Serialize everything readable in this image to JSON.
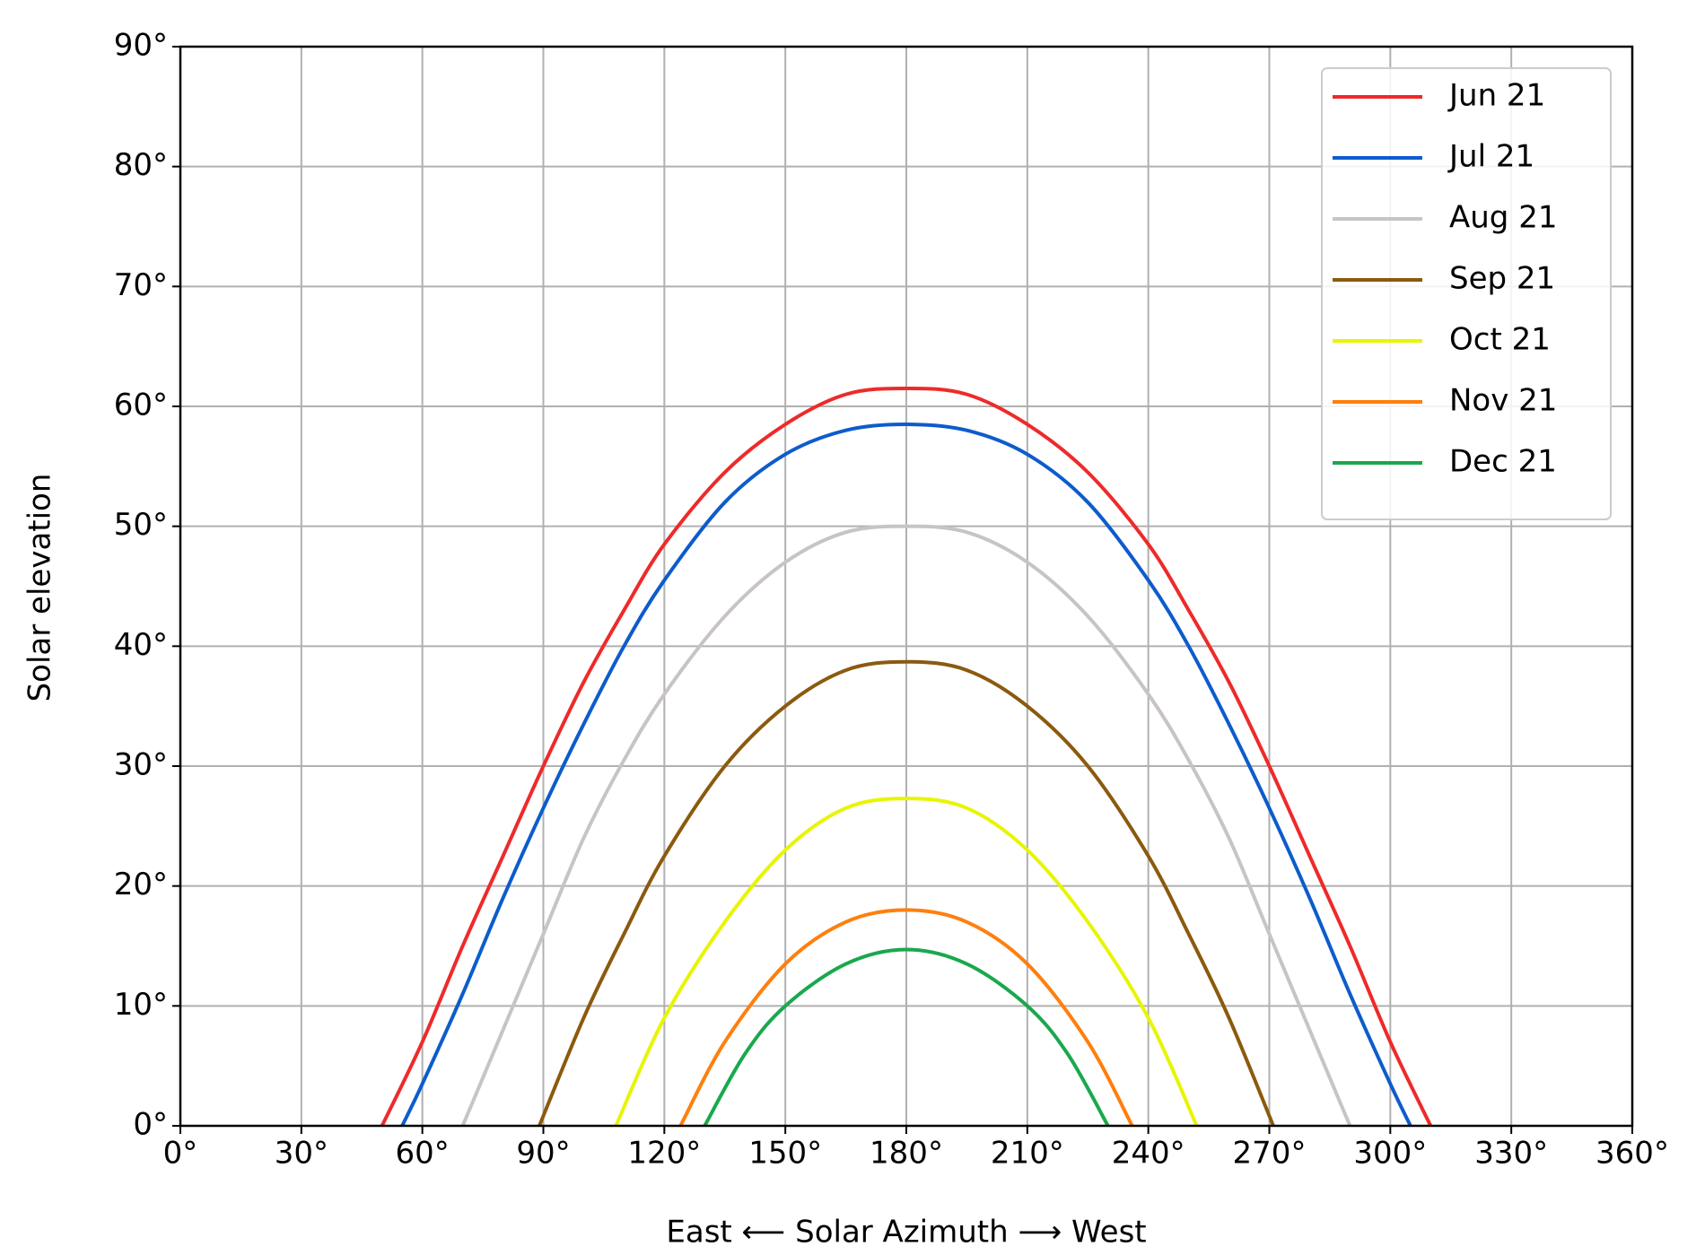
{
  "chart_data": {
    "type": "line",
    "xlabel": "East ⟵ Solar Azimuth ⟶ West",
    "ylabel": "Solar elevation",
    "xlim": [
      0,
      360
    ],
    "ylim": [
      0,
      90
    ],
    "xticks": [
      {
        "value": 0,
        "label": "0°"
      },
      {
        "value": 30,
        "label": "30°"
      },
      {
        "value": 60,
        "label": "60°"
      },
      {
        "value": 90,
        "label": "90°"
      },
      {
        "value": 120,
        "label": "120°"
      },
      {
        "value": 150,
        "label": "150°"
      },
      {
        "value": 180,
        "label": "180°"
      },
      {
        "value": 210,
        "label": "210°"
      },
      {
        "value": 240,
        "label": "240°"
      },
      {
        "value": 270,
        "label": "270°"
      },
      {
        "value": 300,
        "label": "300°"
      },
      {
        "value": 330,
        "label": "330°"
      },
      {
        "value": 360,
        "label": "360°"
      }
    ],
    "yticks": [
      {
        "value": 0,
        "label": "0°"
      },
      {
        "value": 10,
        "label": "10°"
      },
      {
        "value": 20,
        "label": "20°"
      },
      {
        "value": 30,
        "label": "30°"
      },
      {
        "value": 40,
        "label": "40°"
      },
      {
        "value": 50,
        "label": "50°"
      },
      {
        "value": 60,
        "label": "60°"
      },
      {
        "value": 70,
        "label": "70°"
      },
      {
        "value": 80,
        "label": "80°"
      },
      {
        "value": 90,
        "label": "90°"
      }
    ],
    "grid": true,
    "legend": "upper right",
    "series": [
      {
        "name": "Jun 21",
        "color": "#ee2a2a",
        "x": [
          50,
          60,
          70,
          80,
          90,
          100,
          110,
          120,
          135,
          150,
          165,
          180,
          195,
          210,
          225,
          240,
          250,
          260,
          270,
          280,
          290,
          300,
          310
        ],
        "values": [
          0,
          7,
          15,
          22.5,
          30,
          37,
          43,
          48.5,
          54.5,
          58.5,
          61,
          61.5,
          61,
          58.5,
          54.5,
          48.5,
          43,
          37,
          30,
          22.5,
          15,
          7,
          0
        ]
      },
      {
        "name": "Jul 21",
        "color": "#0d5ccc",
        "x": [
          55,
          60,
          70,
          80,
          90,
          100,
          110,
          120,
          135,
          150,
          165,
          180,
          195,
          210,
          225,
          240,
          250,
          260,
          270,
          280,
          290,
          300,
          305
        ],
        "values": [
          0,
          3.5,
          11,
          19,
          26.5,
          33.5,
          40,
          45.5,
          52,
          56,
          58,
          58.5,
          58,
          56,
          52,
          45.5,
          40,
          33.5,
          26.5,
          19,
          11,
          3.5,
          0
        ]
      },
      {
        "name": "Aug 21",
        "color": "#c8c3c8",
        "x": [
          70,
          80,
          90,
          100,
          110,
          120,
          135,
          150,
          165,
          180,
          195,
          210,
          225,
          240,
          250,
          260,
          270,
          280,
          290
        ],
        "values": [
          0,
          8,
          16,
          24,
          30.5,
          36,
          42.5,
          47,
          49.5,
          50,
          49.5,
          47,
          42.5,
          36,
          30.5,
          24,
          16,
          8,
          0
        ]
      },
      {
        "name": "Sep 21",
        "color": "#8b5a0e",
        "x": [
          89,
          100,
          110,
          120,
          135,
          150,
          165,
          180,
          195,
          210,
          225,
          240,
          250,
          260,
          271
        ],
        "values": [
          0,
          9,
          16,
          22.5,
          30,
          35,
          38,
          38.7,
          38,
          35,
          30,
          22.5,
          16,
          9,
          0
        ]
      },
      {
        "name": "Oct 21",
        "color": "#e8f500",
        "x": [
          108,
          120,
          135,
          150,
          165,
          180,
          195,
          210,
          225,
          240,
          252
        ],
        "values": [
          0,
          9,
          17,
          23,
          26.5,
          27.3,
          26.5,
          23,
          17,
          9,
          0
        ]
      },
      {
        "name": "Nov 21",
        "color": "#ff7f0e",
        "x": [
          124,
          135,
          150,
          165,
          180,
          195,
          210,
          225,
          236
        ],
        "values": [
          0,
          7,
          13.5,
          17,
          18,
          17,
          13.5,
          7,
          0
        ]
      },
      {
        "name": "Dec 21",
        "color": "#1aa84d",
        "x": [
          130,
          140,
          150,
          165,
          180,
          195,
          210,
          220,
          230
        ],
        "values": [
          0,
          6,
          10,
          13.5,
          14.7,
          13.5,
          10,
          6,
          0
        ]
      }
    ]
  }
}
